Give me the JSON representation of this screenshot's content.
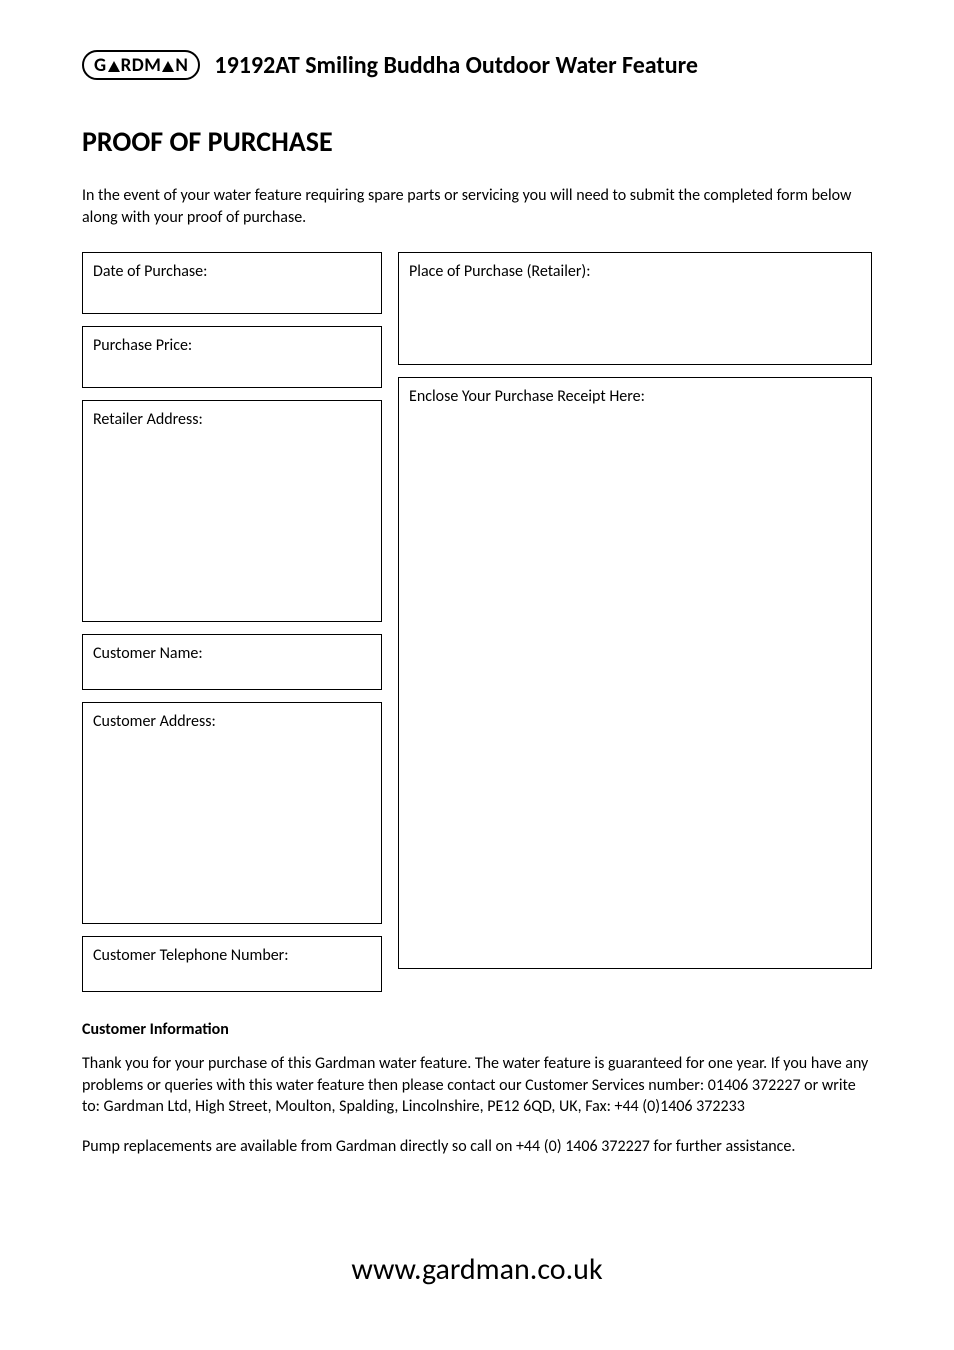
{
  "logo": {
    "prefix": "G",
    "mid1": "RDM",
    "mid2": "N"
  },
  "header": {
    "product_title": "19192AT Smiling Buddha Outdoor Water Feature"
  },
  "section": {
    "title": "PROOF OF PURCHASE",
    "intro": "In the event of your water feature requiring spare parts or servicing you will need to submit the completed form below along with your proof of purchase."
  },
  "form": {
    "date_label": "Date of Purchase:",
    "price_label": "Purchase Price:",
    "retailer_address_label": "Retailer Address:",
    "customer_name_label": "Customer Name:",
    "customer_address_label": "Customer Address:",
    "customer_phone_label": "Customer Telephone Number:",
    "place_label": "Place of Purchase (Retailer):",
    "receipt_label": "Enclose Your Purchase Receipt Here:"
  },
  "info": {
    "heading": "Customer Information",
    "para1": "Thank you for your purchase of this Gardman water feature. The water feature is guaranteed for one year. If you have any problems or queries with this water feature then please contact our Customer Services number: 01406 372227 or write to: Gardman Ltd, High Street, Moulton, Spalding, Lincolnshire, PE12 6QD, UK, Fax: +44 (0)1406 372233",
    "para2": "Pump replacements are available from Gardman directly so call on +44 (0) 1406 372227 for further assistance."
  },
  "footer": {
    "url": "www.gardman.co.uk"
  }
}
